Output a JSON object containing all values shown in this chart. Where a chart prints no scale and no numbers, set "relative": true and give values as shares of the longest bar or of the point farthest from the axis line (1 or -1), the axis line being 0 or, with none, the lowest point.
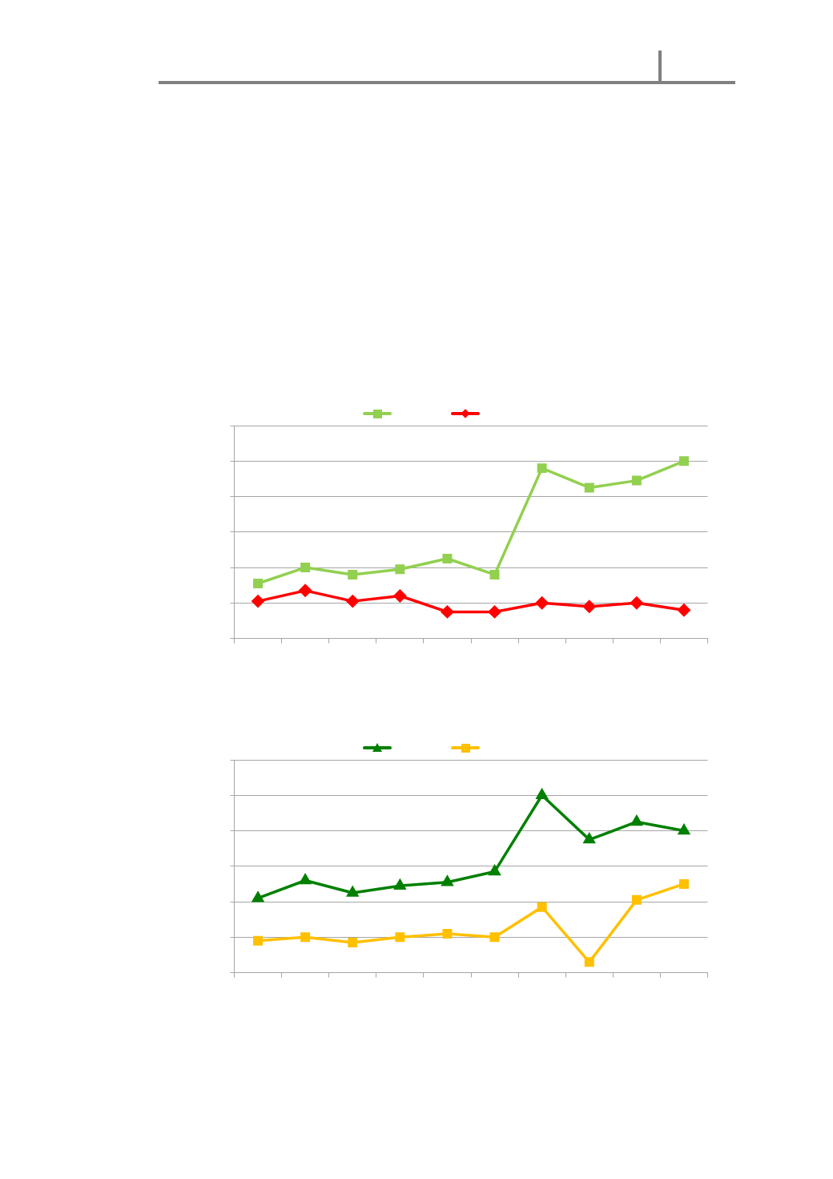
{
  "chart_data": [
    {
      "type": "line",
      "relative": true,
      "categories": [
        null,
        null,
        null,
        null,
        null,
        null,
        null,
        null,
        null,
        null
      ],
      "grid": "y",
      "series": [
        {
          "color": "#92d050",
          "marker": "square",
          "values": [
            0.31,
            0.4,
            0.36,
            0.39,
            0.45,
            0.36,
            0.96,
            0.85,
            0.89,
            1
          ]
        },
        {
          "color": "#ff0000",
          "marker": "diamond",
          "values": [
            0.21,
            0.27,
            0.21,
            0.24,
            0.15,
            0.15,
            0.2,
            0.18,
            0.2,
            0.16
          ]
        }
      ]
    },
    {
      "type": "line",
      "relative": true,
      "categories": [
        null,
        null,
        null,
        null,
        null,
        null,
        null,
        null,
        null,
        null
      ],
      "grid": "y",
      "series": [
        {
          "color": "#008000",
          "marker": "triangle",
          "values": [
            0.42,
            0.52,
            0.45,
            0.49,
            0.51,
            0.57,
            1,
            0.75,
            0.85,
            0.8
          ]
        },
        {
          "color": "#ffc000",
          "marker": "square",
          "values": [
            0.18,
            0.2,
            0.17,
            0.2,
            0.22,
            0.2,
            0.37,
            0.06,
            0.41,
            0.5
          ]
        }
      ]
    }
  ]
}
